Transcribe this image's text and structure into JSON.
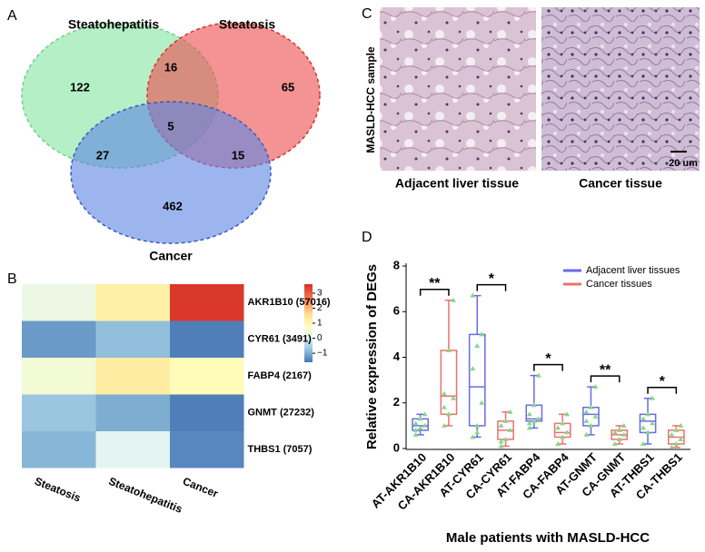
{
  "panel_labels": [
    "A",
    "B",
    "C",
    "D"
  ],
  "venn": {
    "sets": [
      "Steatohepatitis",
      "Steatosis",
      "Cancer"
    ],
    "regions": {
      "steatohepatitis_only": 122,
      "steatohepatitis_steatosis": 16,
      "steatosis_only": 65,
      "all": 5,
      "steatohepatitis_cancer": 27,
      "steatosis_cancer": 15,
      "cancer_only": 462
    }
  },
  "heatmap": {
    "columns": [
      "Steatosis",
      "Steatohepatitis",
      "Cancer"
    ],
    "rows": [
      "AKR1B10 (57016)",
      "CYR61 (3491)",
      "FABP4 (2167)",
      "GNMT (27232)",
      "THBS1 (7057)"
    ],
    "values": [
      [
        0.3,
        1.2,
        3.5
      ],
      [
        -1.2,
        -0.8,
        -1.5
      ],
      [
        0.5,
        1.3,
        0.9
      ],
      [
        -0.7,
        -1.0,
        -1.5
      ],
      [
        -0.9,
        0.1,
        -1.4
      ]
    ],
    "colorbar_lim": [
      -1.6,
      3.6
    ],
    "colorbar_ticks": [
      {
        "value": -1,
        "label": "−1"
      },
      0,
      1,
      2,
      3
    ]
  },
  "histology": {
    "side_label": "MASLD-HCC sample",
    "images": [
      "Adjacent liver tissue",
      "Cancer tissue"
    ],
    "scale_bar": "20 um"
  },
  "chart_data": {
    "type": "box",
    "ylabel": "Relative  expression of DEGs",
    "xlabel": "Male patients with MASLD-HCC",
    "categories": [
      "AT-AKR1B10",
      "CA-AKR1B10",
      "AT-CYR61",
      "CA-CYR61",
      "AT-FABP4",
      "CA-FABP4",
      "AT-GNMT",
      "CA-GNMT",
      "AT-THBS1",
      "CA-THBS1"
    ],
    "ylim": [
      0,
      8
    ],
    "yticks": [
      0,
      2,
      4,
      6,
      8
    ],
    "legend": "upper right",
    "series": [
      {
        "name": "Adjacent liver tissues",
        "color": "#6a6ae8",
        "boxes": [
          {
            "min": 0.6,
            "q1": 0.8,
            "median": 1.0,
            "q3": 1.3,
            "max": 1.5,
            "points": [
              0.6,
              0.9,
              1.0,
              1.1,
              1.3,
              1.5,
              0.8
            ]
          },
          {
            "min": 0.5,
            "q1": 1.0,
            "median": 2.7,
            "q3": 5.0,
            "max": 6.7,
            "points": [
              0.5,
              1.0,
              2.0,
              3.5,
              4.5,
              5.0,
              6.7,
              0.7
            ]
          },
          {
            "min": 0.9,
            "q1": 1.2,
            "median": 1.3,
            "q3": 1.9,
            "max": 3.2,
            "points": [
              0.9,
              1.2,
              1.3,
              1.5,
              1.9,
              3.2,
              1.1
            ]
          },
          {
            "min": 0.6,
            "q1": 1.0,
            "median": 1.5,
            "q3": 1.8,
            "max": 2.7,
            "points": [
              0.6,
              1.0,
              1.4,
              1.6,
              1.8,
              2.7,
              1.2
            ]
          },
          {
            "min": 0.2,
            "q1": 0.7,
            "median": 1.2,
            "q3": 1.5,
            "max": 2.2,
            "points": [
              0.2,
              0.7,
              1.1,
              1.3,
              1.5,
              2.2,
              0.9
            ]
          }
        ]
      },
      {
        "name": "Cancer tissues",
        "color": "#ee6f6f",
        "boxes": [
          {
            "min": 1.0,
            "q1": 1.5,
            "median": 2.3,
            "q3": 4.3,
            "max": 6.5,
            "points": [
              1.0,
              1.5,
              2.2,
              2.4,
              4.3,
              6.5,
              1.8
            ]
          },
          {
            "min": 0.1,
            "q1": 0.4,
            "median": 0.8,
            "q3": 1.2,
            "max": 1.6,
            "points": [
              0.1,
              0.4,
              0.8,
              1.0,
              1.2,
              1.6,
              0.3
            ]
          },
          {
            "min": 0.2,
            "q1": 0.5,
            "median": 0.7,
            "q3": 1.1,
            "max": 1.5,
            "points": [
              0.2,
              0.5,
              0.7,
              0.9,
              1.1,
              1.5
            ]
          },
          {
            "min": 0.2,
            "q1": 0.4,
            "median": 0.6,
            "q3": 0.8,
            "max": 1.0,
            "points": [
              0.2,
              0.4,
              0.6,
              0.7,
              0.8,
              1.0
            ]
          },
          {
            "min": 0.05,
            "q1": 0.2,
            "median": 0.5,
            "q3": 0.8,
            "max": 1.0,
            "points": [
              0.05,
              0.2,
              0.4,
              0.6,
              0.8,
              1.0
            ]
          }
        ]
      }
    ],
    "significance": [
      "**",
      "*",
      "*",
      "**",
      "*"
    ]
  }
}
